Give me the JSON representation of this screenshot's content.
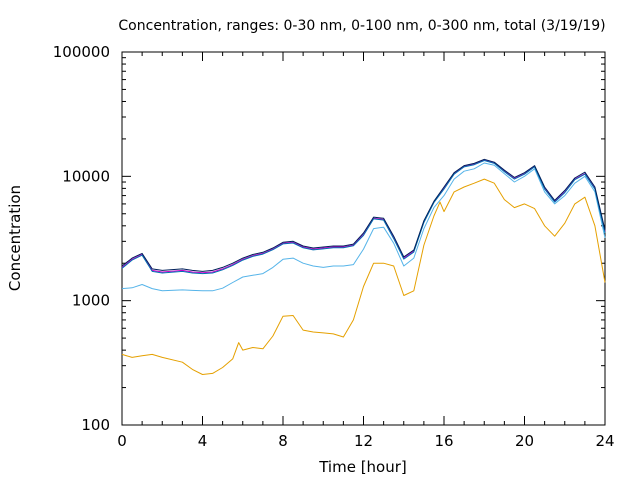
{
  "chart_data": {
    "type": "line",
    "title": "Concentration, ranges: 0-30 nm, 0-100 nm, 0-300 nm, total (3/19/19)",
    "xlabel": "Time [hour]",
    "ylabel": "Concentration",
    "xlim": [
      0,
      24
    ],
    "ylim": [
      100,
      100000
    ],
    "yscale": "log",
    "grid": false,
    "legend": "none",
    "x_ticks": [
      0,
      4,
      8,
      12,
      16,
      20,
      24
    ],
    "x_tick_labels": [
      "0",
      "4",
      "8",
      "12",
      "16",
      "20",
      "24"
    ],
    "y_ticks": [
      100,
      1000,
      10000,
      100000
    ],
    "y_tick_labels": [
      "100",
      "1000",
      "10000",
      "100000"
    ],
    "series": [
      {
        "color": "#e5a000",
        "x": [
          0,
          0.5,
          1,
          1.5,
          2,
          3,
          3.5,
          4,
          4.5,
          5,
          5.5,
          5.8,
          6,
          6.5,
          7,
          7.5,
          8,
          8.5,
          9,
          9.5,
          10,
          10.5,
          11,
          11.5,
          12,
          12.5,
          13,
          13.5,
          14,
          14.5,
          15,
          15.5,
          15.8,
          16,
          16.5,
          17,
          17.5,
          18,
          18.5,
          19,
          19.5,
          20,
          20.5,
          21,
          21.5,
          22,
          22.5,
          23,
          23.5,
          24
        ],
        "y": [
          370,
          350,
          360,
          370,
          350,
          320,
          280,
          255,
          260,
          290,
          340,
          460,
          400,
          420,
          410,
          520,
          750,
          760,
          580,
          560,
          550,
          540,
          510,
          700,
          1300,
          2000,
          2000,
          1900,
          1100,
          1200,
          2800,
          4800,
          6200,
          5200,
          7500,
          8200,
          8800,
          9500,
          8800,
          6500,
          5600,
          6000,
          5500,
          4000,
          3300,
          4200,
          6000,
          6800,
          4000,
          1400
        ]
      },
      {
        "color": "#56b4e9",
        "x": [
          0,
          0.5,
          1,
          1.5,
          2,
          3,
          3.5,
          4,
          4.5,
          5,
          5.5,
          6,
          6.5,
          7,
          7.5,
          8,
          8.5,
          9,
          9.5,
          10,
          10.5,
          11,
          11.5,
          12,
          12.5,
          13,
          13.5,
          14,
          14.5,
          15,
          15.5,
          16,
          16.5,
          17,
          17.5,
          18,
          18.5,
          19,
          19.5,
          20,
          20.5,
          21,
          21.5,
          22,
          22.5,
          23,
          23.5,
          24
        ],
        "y": [
          1250,
          1270,
          1350,
          1250,
          1200,
          1220,
          1210,
          1200,
          1200,
          1260,
          1400,
          1550,
          1600,
          1650,
          1850,
          2150,
          2200,
          2000,
          1900,
          1850,
          1900,
          1900,
          1950,
          2600,
          3800,
          3900,
          2900,
          1900,
          2200,
          3800,
          5600,
          7000,
          9500,
          11000,
          11500,
          12800,
          12300,
          10500,
          9000,
          10000,
          11500,
          7500,
          6000,
          7000,
          8800,
          10000,
          7500,
          3200
        ]
      },
      {
        "color": "#cc00cc",
        "x": [
          0,
          0.5,
          1,
          1.5,
          2,
          3,
          3.5,
          4,
          4.5,
          5,
          5.5,
          6,
          6.5,
          7,
          7.5,
          8,
          8.5,
          9,
          9.5,
          10,
          10.5,
          11,
          11.5,
          12,
          12.5,
          13,
          13.5,
          14,
          14.5,
          15,
          15.5,
          16,
          16.5,
          17,
          17.5,
          18,
          18.5,
          19,
          19.5,
          20,
          20.5,
          21,
          21.5,
          22,
          22.5,
          23,
          23.5,
          24
        ],
        "y": [
          1850,
          2150,
          2350,
          1750,
          1700,
          1750,
          1700,
          1680,
          1700,
          1800,
          1950,
          2150,
          2300,
          2400,
          2600,
          2900,
          2950,
          2700,
          2600,
          2650,
          2700,
          2700,
          2800,
          3400,
          4600,
          4500,
          3200,
          2200,
          2500,
          4300,
          6200,
          8000,
          10500,
          12000,
          12500,
          13500,
          12800,
          11000,
          9600,
          10500,
          12000,
          8000,
          6300,
          7500,
          9500,
          10500,
          8000,
          3600
        ]
      },
      {
        "color": "#0072b2",
        "x": [
          0,
          0.5,
          1,
          1.5,
          2,
          3,
          3.5,
          4,
          4.5,
          5,
          5.5,
          6,
          6.5,
          7,
          7.5,
          8,
          8.5,
          9,
          9.5,
          10,
          10.5,
          11,
          11.5,
          12,
          12.5,
          13,
          13.5,
          14,
          14.5,
          15,
          15.5,
          16,
          16.5,
          17,
          17.5,
          18,
          18.5,
          19,
          19.5,
          20,
          20.5,
          21,
          21.5,
          22,
          22.5,
          23,
          23.5,
          24
        ],
        "y": [
          1820,
          2120,
          2320,
          1720,
          1670,
          1720,
          1670,
          1650,
          1670,
          1770,
          1920,
          2120,
          2270,
          2370,
          2570,
          2860,
          2910,
          2660,
          2560,
          2610,
          2660,
          2660,
          2760,
          3350,
          4550,
          4450,
          3150,
          2160,
          2460,
          4250,
          6150,
          7900,
          10400,
          11900,
          12400,
          13400,
          12700,
          10900,
          9500,
          10400,
          11900,
          7900,
          6200,
          7400,
          9400,
          10400,
          7900,
          3500
        ]
      },
      {
        "color": "#00205b",
        "x": [
          0,
          0.5,
          1,
          1.5,
          2,
          3,
          3.5,
          4,
          4.5,
          5,
          5.5,
          6,
          6.5,
          7,
          7.5,
          8,
          8.5,
          9,
          9.5,
          10,
          10.5,
          11,
          11.5,
          12,
          12.5,
          13,
          13.5,
          14,
          14.5,
          15,
          15.5,
          16,
          16.5,
          17,
          17.5,
          18,
          18.5,
          19,
          19.5,
          20,
          20.5,
          21,
          21.5,
          22,
          22.5,
          23,
          23.5,
          24
        ],
        "y": [
          1900,
          2200,
          2400,
          1800,
          1750,
          1800,
          1750,
          1720,
          1750,
          1850,
          2000,
          2200,
          2350,
          2450,
          2650,
          2950,
          3000,
          2750,
          2650,
          2700,
          2750,
          2750,
          2850,
          3500,
          4700,
          4600,
          3300,
          2250,
          2550,
          4400,
          6300,
          8200,
          10700,
          12200,
          12700,
          13700,
          13000,
          11200,
          9800,
          10700,
          12200,
          8200,
          6400,
          7700,
          9700,
          10800,
          8200,
          3700
        ]
      }
    ]
  }
}
